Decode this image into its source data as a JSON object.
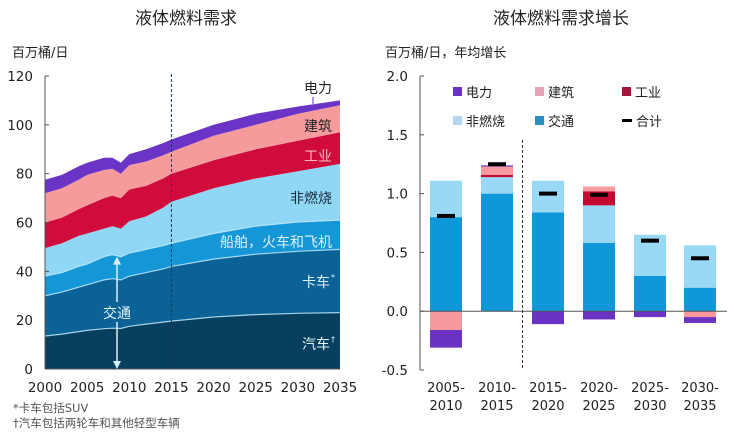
{
  "chart_data": [
    {
      "type": "area",
      "title": "液体燃料需求",
      "ylabel": "百万桶/日",
      "xlabel": "",
      "xlim": [
        2000,
        2035
      ],
      "ylim": [
        0,
        120
      ],
      "yticks": [
        0,
        20,
        40,
        60,
        80,
        100,
        120
      ],
      "xticks": [
        2000,
        2005,
        2010,
        2015,
        2020,
        2025,
        2030,
        2035
      ],
      "divider_year": 2015,
      "stacked": true,
      "x": [
        2000,
        2002,
        2004,
        2005,
        2007,
        2008,
        2009,
        2010,
        2012,
        2014,
        2015,
        2020,
        2025,
        2030,
        2035
      ],
      "cumulative_boundaries": {
        "汽车": [
          13.5,
          14.3,
          15.3,
          15.8,
          16.5,
          16.7,
          16.6,
          17.5,
          18.4,
          19.2,
          19.6,
          21.3,
          22.3,
          22.8,
          23.1
        ],
        "卡车": [
          30.0,
          31.5,
          33.5,
          34.5,
          36.5,
          37.0,
          36.5,
          38.0,
          39.5,
          41.0,
          42.0,
          45.0,
          47.0,
          48.2,
          49.0
        ],
        "船舶，火车和飞机": [
          38.0,
          39.5,
          42.0,
          43.0,
          46.0,
          46.8,
          46.0,
          47.5,
          49.0,
          50.5,
          51.5,
          55.5,
          58.5,
          60.2,
          61.0
        ],
        "非燃烧": [
          49.5,
          51.5,
          54.5,
          55.5,
          57.5,
          58.5,
          57.5,
          60.5,
          62.5,
          66.0,
          68.5,
          74.0,
          78.0,
          81.0,
          84.0
        ],
        "工业": [
          60.0,
          62.0,
          65.5,
          67.0,
          70.0,
          71.0,
          70.0,
          73.5,
          75.0,
          78.0,
          80.0,
          85.5,
          90.0,
          93.5,
          97.0
        ],
        "建筑": [
          72.0,
          74.0,
          77.5,
          79.5,
          81.5,
          82.0,
          80.0,
          83.5,
          85.0,
          87.5,
          89.0,
          95.5,
          100.0,
          104.5,
          108.0
        ],
        "电力": [
          77.5,
          79.5,
          83.0,
          84.5,
          86.5,
          86.5,
          84.5,
          88.0,
          90.0,
          92.5,
          94.0,
          100.0,
          104.5,
          107.5,
          110.0
        ]
      },
      "series": [
        {
          "name": "汽车",
          "label": "汽车",
          "mark": "†",
          "color": "#073f5f"
        },
        {
          "name": "卡车",
          "label": "卡车",
          "mark": "*",
          "color": "#0b6296"
        },
        {
          "name": "船舶，火车和飞机",
          "label": "船舶，火车和飞机",
          "mark": "",
          "color": "#1596d6"
        },
        {
          "name": "非燃烧",
          "label": "非燃烧",
          "mark": "",
          "color": "#8fd7f5"
        },
        {
          "name": "工业",
          "label": "工业",
          "mark": "",
          "color": "#cf0c3c"
        },
        {
          "name": "建筑",
          "label": "建筑",
          "mark": "",
          "color": "#f59b9c"
        },
        {
          "name": "电力",
          "label": "电力",
          "mark": "",
          "color": "#6a35c6"
        }
      ],
      "annotations": {
        "transport_label": "交通",
        "transport_span": [
          0,
          46
        ]
      },
      "footnotes": [
        "*卡车包括SUV",
        "†汽车包括两轮车和其他轻型车辆"
      ]
    },
    {
      "type": "bar",
      "stacked": true,
      "title": "液体燃料需求增长",
      "ylabel": "百万桶/日，年均增长",
      "xlabel": "",
      "ylim": [
        -0.5,
        2.0
      ],
      "yticks": [
        "-0.5",
        "0.0",
        "0.5",
        "1.0",
        "1.5",
        "2.0"
      ],
      "ytick_values": [
        -0.5,
        0,
        0.5,
        1.0,
        1.5,
        2.0
      ],
      "categories": [
        [
          "2005-",
          "2010"
        ],
        [
          "2010-",
          "2015"
        ],
        [
          "2015-",
          "2020"
        ],
        [
          "2020-",
          "2025"
        ],
        [
          "2025-",
          "2030"
        ],
        [
          "2030-",
          "2035"
        ]
      ],
      "divider_after_index": 1,
      "series": [
        {
          "name": "交通",
          "color": "#0f97d9",
          "values": [
            0.8,
            1.0,
            0.84,
            0.58,
            0.3,
            0.2
          ]
        },
        {
          "name": "非燃烧",
          "color": "#9ad9f6",
          "values": [
            0.31,
            0.14,
            0.27,
            0.32,
            0.35,
            0.36
          ]
        },
        {
          "name": "工业",
          "color": "#c40a32",
          "values": [
            0.0,
            0.02,
            0.0,
            0.12,
            0.0,
            0.0
          ]
        },
        {
          "name": "建筑",
          "color": "#f8999e",
          "values": [
            -0.16,
            0.07,
            0.0,
            0.04,
            0.0,
            -0.05
          ]
        },
        {
          "name": "电力",
          "color": "#6a33c4",
          "values": [
            -0.15,
            0.01,
            -0.11,
            -0.07,
            -0.05,
            -0.05
          ]
        }
      ],
      "total": {
        "name": "合计",
        "color": "#000000",
        "values": [
          0.81,
          1.25,
          1.0,
          0.99,
          0.6,
          0.45
        ]
      },
      "legend": [
        {
          "label": "电力",
          "color": "#6a33c4",
          "kind": "box"
        },
        {
          "label": "建筑",
          "color": "#e6a3b4",
          "kind": "box"
        },
        {
          "label": "工业",
          "color": "#a3173f",
          "kind": "box"
        },
        {
          "label": "非燃烧",
          "color": "#b5d6f2",
          "kind": "box"
        },
        {
          "label": "交通",
          "color": "#2a8fbf",
          "kind": "box"
        },
        {
          "label": "合计",
          "color": "#000000",
          "kind": "line"
        }
      ],
      "legend_position": "top"
    }
  ]
}
